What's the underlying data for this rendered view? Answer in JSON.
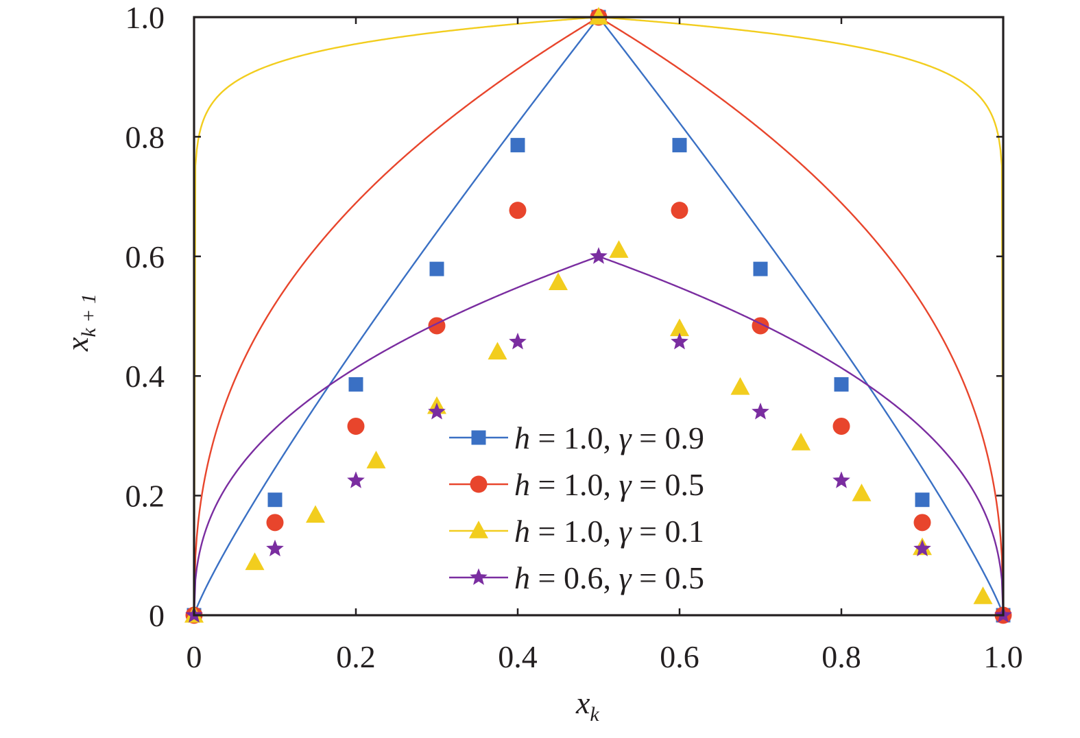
{
  "chart_data": {
    "type": "line",
    "title": "",
    "xlabel": {
      "base": "x",
      "sub": "k"
    },
    "ylabel": {
      "base": "x",
      "sub": "k + 1"
    },
    "xlim": [
      0,
      1.0
    ],
    "ylim": [
      0,
      1.0
    ],
    "xticks": [
      0,
      0.2,
      0.4,
      0.6,
      0.8,
      1.0
    ],
    "yticks": [
      0,
      0.2,
      0.4,
      0.6,
      0.8,
      1.0
    ],
    "xtick_labels": [
      "0",
      "0.2",
      "0.4",
      "0.6",
      "0.8",
      "1.0"
    ],
    "ytick_labels": [
      "0",
      "0.2",
      "0.4",
      "0.6",
      "0.8",
      "1.0"
    ],
    "grid": false,
    "legend_position": "lower-center",
    "series": [
      {
        "name": "h = 1.0, γ = 0.9",
        "legend": {
          "h": "1.0",
          "gamma": "0.9"
        },
        "color": "#3a70c4",
        "marker": "square",
        "curve": {
          "h": 1.0,
          "gamma": 0.9
        },
        "points": [
          [
            0,
            0
          ],
          [
            0.1,
            0.193
          ],
          [
            0.2,
            0.386
          ],
          [
            0.3,
            0.579
          ],
          [
            0.4,
            0.786
          ],
          [
            0.5,
            1.0
          ],
          [
            0.6,
            0.786
          ],
          [
            0.7,
            0.579
          ],
          [
            0.8,
            0.386
          ],
          [
            0.9,
            0.193
          ],
          [
            1.0,
            0
          ]
        ]
      },
      {
        "name": "h = 1.0, γ = 0.5",
        "legend": {
          "h": "1.0",
          "gamma": "0.5"
        },
        "color": "#e8452c",
        "marker": "circle",
        "curve": {
          "h": 1.0,
          "gamma": 0.5
        },
        "points": [
          [
            0,
            0
          ],
          [
            0.1,
            0.155
          ],
          [
            0.2,
            0.316
          ],
          [
            0.3,
            0.484
          ],
          [
            0.4,
            0.677
          ],
          [
            0.5,
            1.0
          ],
          [
            0.6,
            0.677
          ],
          [
            0.7,
            0.484
          ],
          [
            0.8,
            0.316
          ],
          [
            0.9,
            0.155
          ],
          [
            1.0,
            0
          ]
        ]
      },
      {
        "name": "h = 1.0, γ = 0.1",
        "legend": {
          "h": "1.0",
          "gamma": "0.1"
        },
        "color": "#f2cd1e",
        "marker": "triangle",
        "curve": {
          "h": 1.0,
          "gamma": 0.1
        },
        "points": [
          [
            0,
            0
          ],
          [
            0.075,
            0.088
          ],
          [
            0.15,
            0.167
          ],
          [
            0.225,
            0.258
          ],
          [
            0.3,
            0.349
          ],
          [
            0.375,
            0.44
          ],
          [
            0.45,
            0.556
          ],
          [
            0.5,
            1.0
          ],
          [
            0.525,
            0.61
          ],
          [
            0.6,
            0.479
          ],
          [
            0.675,
            0.381
          ],
          [
            0.75,
            0.288
          ],
          [
            0.825,
            0.203
          ],
          [
            0.9,
            0.113
          ],
          [
            0.975,
            0.031
          ]
        ]
      },
      {
        "name": "h = 0.6, γ = 0.5",
        "legend": {
          "h": "0.6",
          "gamma": "0.5"
        },
        "color": "#7a2da0",
        "marker": "star",
        "curve": {
          "h": 0.6,
          "gamma": 0.5
        },
        "points": [
          [
            0,
            0
          ],
          [
            0.1,
            0.111
          ],
          [
            0.2,
            0.225
          ],
          [
            0.3,
            0.34
          ],
          [
            0.4,
            0.457
          ],
          [
            0.5,
            0.6
          ],
          [
            0.6,
            0.457
          ],
          [
            0.7,
            0.34
          ],
          [
            0.8,
            0.225
          ],
          [
            0.9,
            0.111
          ],
          [
            1.0,
            0
          ]
        ]
      }
    ]
  }
}
